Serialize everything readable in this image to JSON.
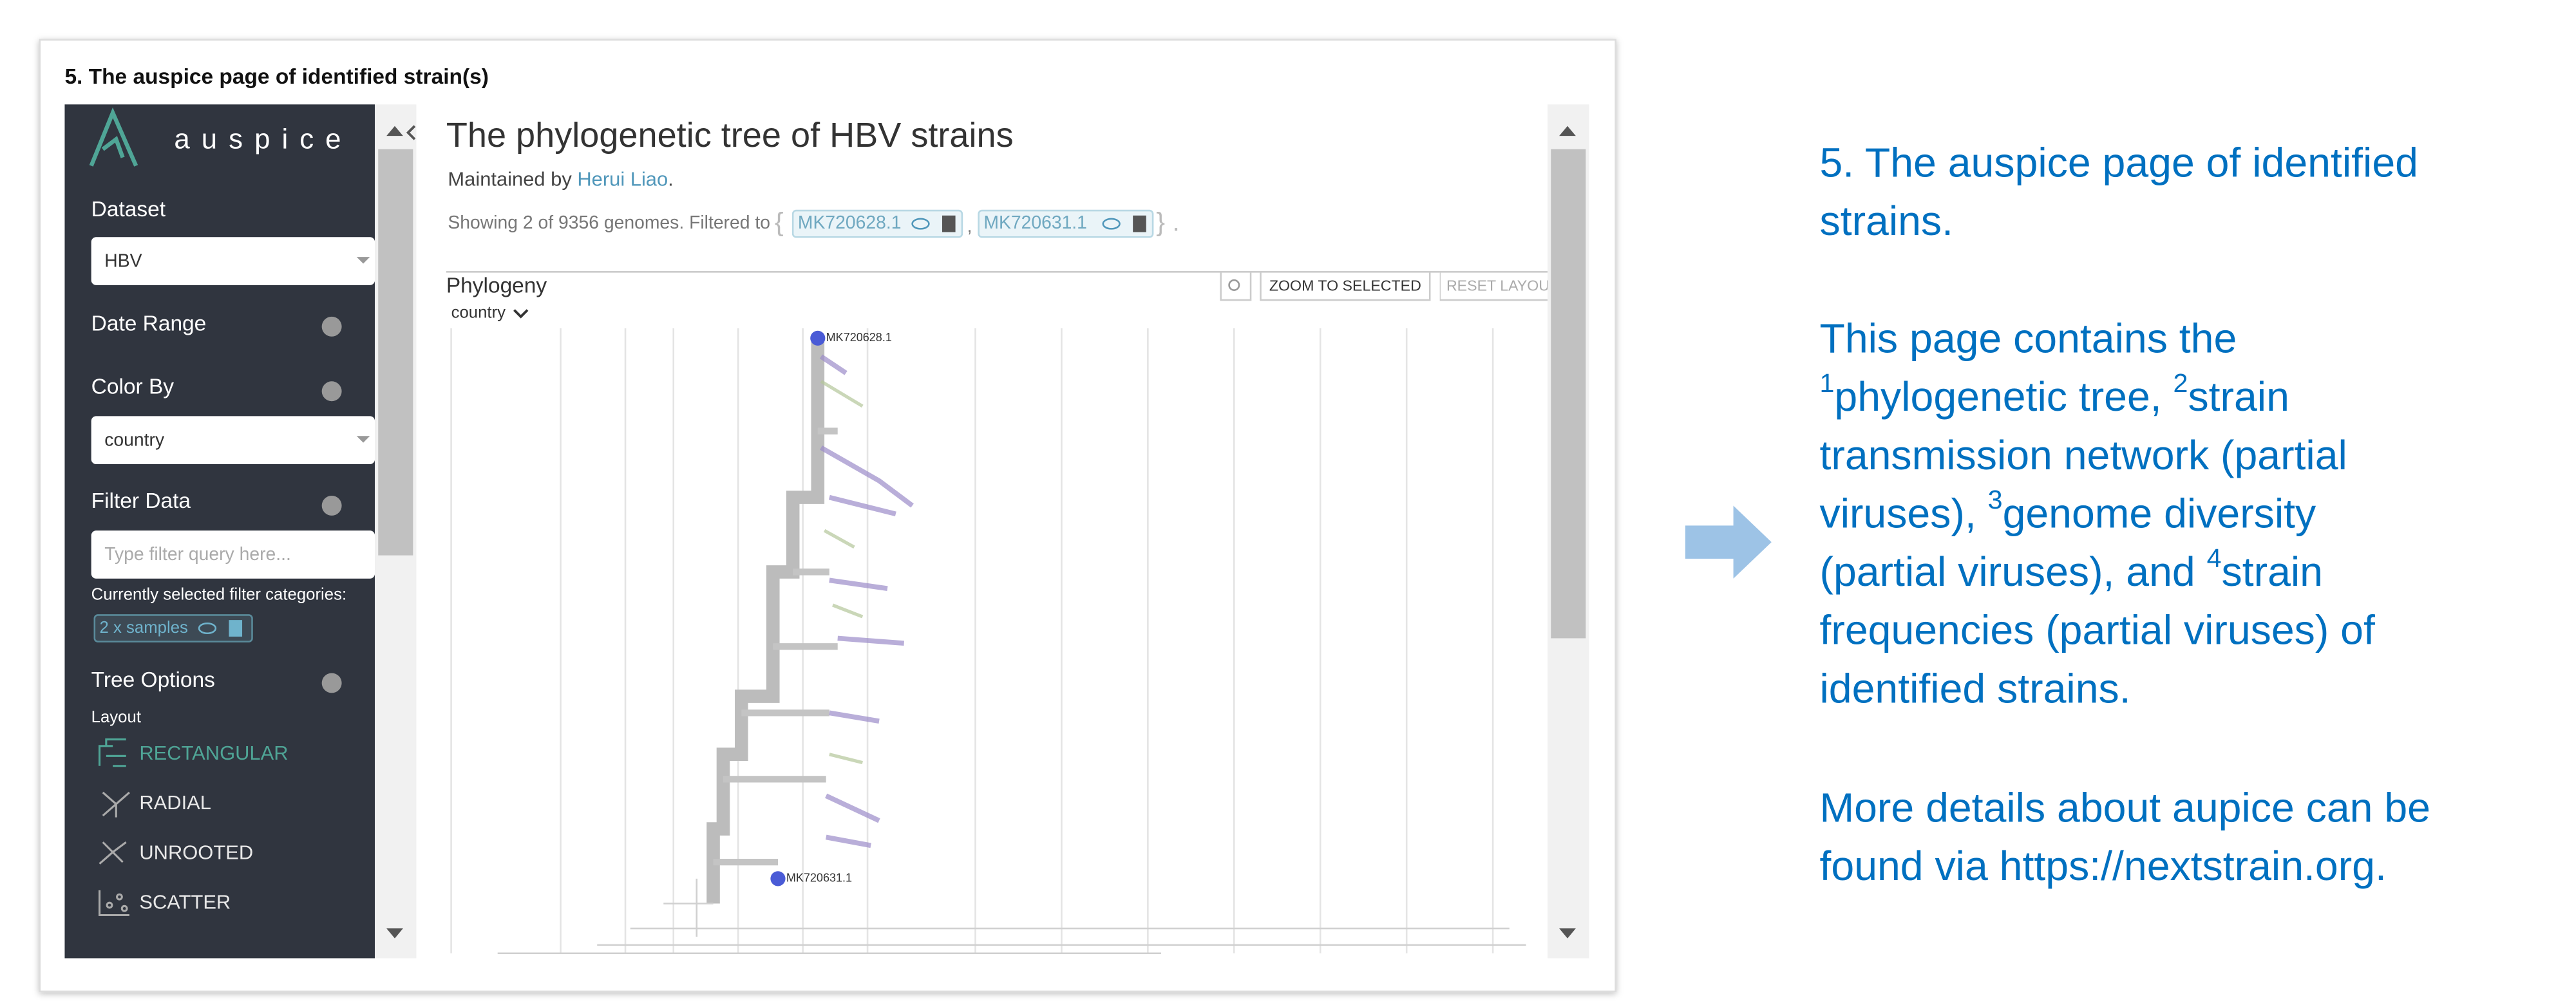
{
  "card_title": "5. The auspice page of identified strain(s)",
  "sidebar": {
    "logo": "auspice",
    "dataset_label": "Dataset",
    "dataset_value": "HBV",
    "date_range": "Date Range",
    "color_by": "Color By",
    "color_value": "country",
    "filter_data": "Filter Data",
    "filter_placeholder": "Type filter query here...",
    "filter_categories": "Currently selected filter categories:",
    "filter_chip": "2 x samples",
    "tree_options": "Tree Options",
    "layout": "Layout",
    "layouts": [
      "RECTANGULAR",
      "RADIAL",
      "UNROOTED",
      "SCATTER"
    ]
  },
  "main": {
    "title": "The phylogenetic tree of HBV strains",
    "maintained_by": "Maintained by",
    "author": "Herui Liao",
    "showing": "Showing 2 of 9356 genomes. Filtered to",
    "filters": [
      "MK720628.1",
      "MK720631.1"
    ],
    "panel_title": "Phylogeny",
    "color_select": "country",
    "zoom": "ZOOM TO SELECTED",
    "reset": "RESET LAYOUT",
    "tips": [
      "MK720628.1",
      "MK720631.1"
    ]
  },
  "description": {
    "heading": [
      "5. The auspice page of identified",
      "strains."
    ],
    "paragraph": [
      [
        {
          "text": "This page contains the"
        }
      ],
      [
        {
          "sup": "1"
        },
        {
          "text": "phylogenetic tree, "
        },
        {
          "sup": "2"
        },
        {
          "text": "strain"
        }
      ],
      [
        {
          "text": "transmission network (partial"
        }
      ],
      [
        {
          "text": "viruses), "
        },
        {
          "sup": "3"
        },
        {
          "text": "genome diversity"
        }
      ],
      [
        {
          "text": "(partial viruses), and "
        },
        {
          "sup": "4"
        },
        {
          "text": "strain"
        }
      ],
      [
        {
          "text": "frequencies (partial viruses) of"
        }
      ],
      [
        {
          "text": "identified strains."
        }
      ]
    ],
    "more": [
      "More details about aupice can be",
      "found via https://nextstrain.org."
    ]
  }
}
